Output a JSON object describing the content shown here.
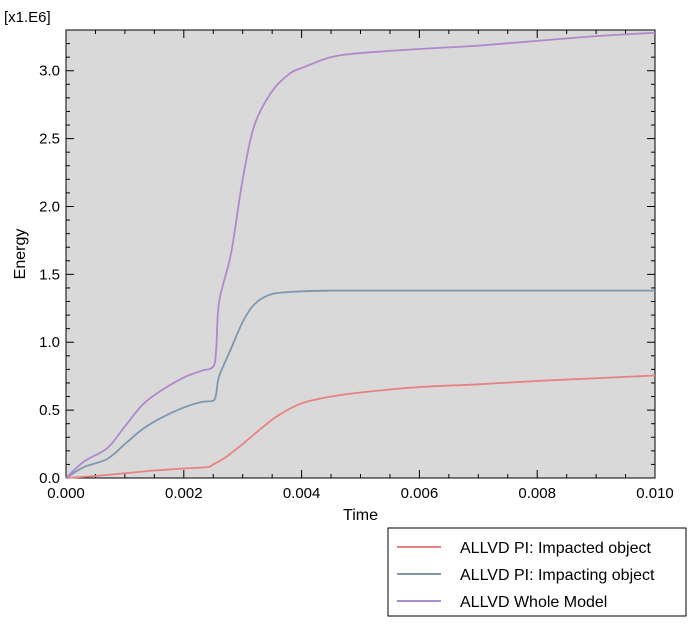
{
  "chart_data": {
    "type": "line",
    "title": "",
    "xlabel": "Time",
    "ylabel": "Energy",
    "y_multiplier_label": "[x1.E6]",
    "xlim": [
      0.0,
      0.01
    ],
    "ylim": [
      0.0,
      3.3
    ],
    "x_ticks": [
      "0.000",
      "0.002",
      "0.004",
      "0.006",
      "0.008",
      "0.010"
    ],
    "x_tick_values": [
      0.0,
      0.002,
      0.004,
      0.006,
      0.008,
      0.01
    ],
    "y_ticks": [
      "0.0",
      "0.5",
      "1.0",
      "1.5",
      "2.0",
      "2.5",
      "3.0"
    ],
    "y_tick_values": [
      0.0,
      0.5,
      1.0,
      1.5,
      2.0,
      2.5,
      3.0
    ],
    "grid": false,
    "legend_position": "bottom-right-outside",
    "background_color": "#d9d9d9",
    "series": [
      {
        "name": "ALLVD PI: Impacted object",
        "color": "#e88282",
        "x": [
          0.0,
          0.0005,
          0.001,
          0.0015,
          0.002,
          0.0024,
          0.0025,
          0.0027,
          0.003,
          0.0033,
          0.0036,
          0.004,
          0.0045,
          0.005,
          0.006,
          0.007,
          0.008,
          0.009,
          0.01
        ],
        "y": [
          0.0,
          0.015,
          0.035,
          0.055,
          0.07,
          0.08,
          0.1,
          0.15,
          0.25,
          0.36,
          0.46,
          0.55,
          0.6,
          0.63,
          0.67,
          0.69,
          0.715,
          0.735,
          0.755
        ]
      },
      {
        "name": "ALLVD PI: Impacting object",
        "color": "#7f96b0",
        "x": [
          0.0,
          0.0003,
          0.0007,
          0.001,
          0.0013,
          0.0016,
          0.002,
          0.0023,
          0.0025,
          0.00255,
          0.0026,
          0.0028,
          0.003,
          0.0032,
          0.0035,
          0.004,
          0.0045,
          0.005,
          0.006,
          0.007,
          0.008,
          0.009,
          0.01
        ],
        "y": [
          0.0,
          0.08,
          0.14,
          0.25,
          0.36,
          0.44,
          0.52,
          0.56,
          0.57,
          0.62,
          0.75,
          0.95,
          1.15,
          1.28,
          1.355,
          1.375,
          1.38,
          1.38,
          1.38,
          1.38,
          1.38,
          1.38,
          1.38
        ]
      },
      {
        "name": "ALLVD Whole Model",
        "color": "#b088cc",
        "x": [
          0.0,
          0.0003,
          0.0007,
          0.001,
          0.0013,
          0.0016,
          0.002,
          0.0023,
          0.0025,
          0.00255,
          0.0026,
          0.0028,
          0.003,
          0.0032,
          0.0035,
          0.0038,
          0.004,
          0.0045,
          0.005,
          0.006,
          0.007,
          0.008,
          0.009,
          0.01
        ],
        "y": [
          0.0,
          0.12,
          0.22,
          0.38,
          0.54,
          0.64,
          0.74,
          0.79,
          0.82,
          0.95,
          1.3,
          1.65,
          2.2,
          2.6,
          2.85,
          2.98,
          3.02,
          3.1,
          3.13,
          3.16,
          3.185,
          3.22,
          3.255,
          3.28
        ]
      }
    ]
  }
}
